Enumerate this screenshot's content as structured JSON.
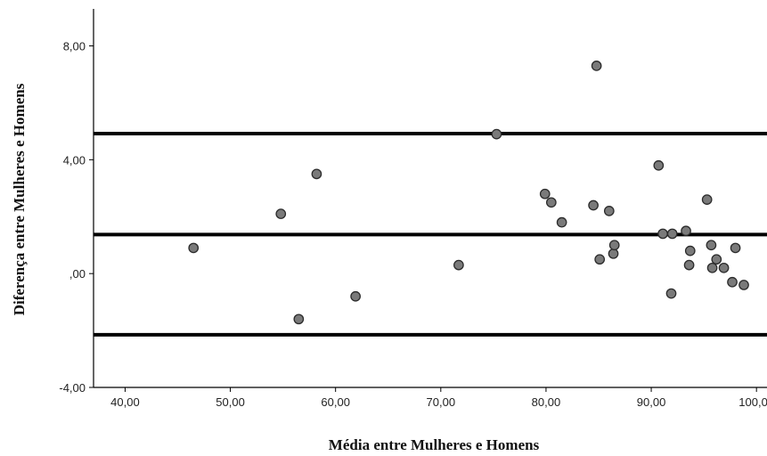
{
  "chart_data": {
    "type": "scatter",
    "xlabel": "Média entre Mulheres e Homens",
    "ylabel": "Diferença entre Mulheres e Homens",
    "xlim": [
      37,
      101
    ],
    "ylim": [
      -4,
      9.3
    ],
    "x_ticks": [
      40,
      50,
      60,
      70,
      80,
      90,
      100
    ],
    "x_tick_labels": [
      "40,00",
      "50,00",
      "60,00",
      "70,00",
      "80,00",
      "90,00",
      "100,00"
    ],
    "y_ticks": [
      -4,
      0,
      4,
      8
    ],
    "y_tick_labels": [
      "-4,00",
      ",00",
      "4,00",
      "8,00"
    ],
    "reference_lines": [
      4.92,
      1.37,
      -2.15
    ],
    "grid": false,
    "colors": {
      "point_fill": "#7a7a7a",
      "point_stroke": "#2b2b2b",
      "line": "#000000",
      "axis": "#000000"
    },
    "points": [
      {
        "x": 46.5,
        "y": 0.9
      },
      {
        "x": 54.8,
        "y": 2.1
      },
      {
        "x": 56.5,
        "y": -1.6
      },
      {
        "x": 58.2,
        "y": 3.5
      },
      {
        "x": 61.9,
        "y": -0.8
      },
      {
        "x": 71.7,
        "y": 0.3
      },
      {
        "x": 75.3,
        "y": 4.9
      },
      {
        "x": 79.9,
        "y": 2.8
      },
      {
        "x": 80.5,
        "y": 2.5
      },
      {
        "x": 81.5,
        "y": 1.8
      },
      {
        "x": 84.5,
        "y": 2.4
      },
      {
        "x": 84.8,
        "y": 7.3
      },
      {
        "x": 85.1,
        "y": 0.5
      },
      {
        "x": 86.0,
        "y": 2.2
      },
      {
        "x": 86.4,
        "y": 0.7
      },
      {
        "x": 86.5,
        "y": 1.0
      },
      {
        "x": 90.7,
        "y": 3.8
      },
      {
        "x": 91.1,
        "y": 1.4
      },
      {
        "x": 91.9,
        "y": -0.7
      },
      {
        "x": 92.0,
        "y": 1.4
      },
      {
        "x": 93.3,
        "y": 1.5
      },
      {
        "x": 93.6,
        "y": 0.3
      },
      {
        "x": 93.7,
        "y": 0.8
      },
      {
        "x": 95.3,
        "y": 2.6
      },
      {
        "x": 95.7,
        "y": 1.0
      },
      {
        "x": 95.8,
        "y": 0.2
      },
      {
        "x": 96.2,
        "y": 0.5
      },
      {
        "x": 96.9,
        "y": 0.2
      },
      {
        "x": 97.7,
        "y": -0.3
      },
      {
        "x": 98.0,
        "y": 0.9
      },
      {
        "x": 98.8,
        "y": -0.4
      }
    ]
  }
}
